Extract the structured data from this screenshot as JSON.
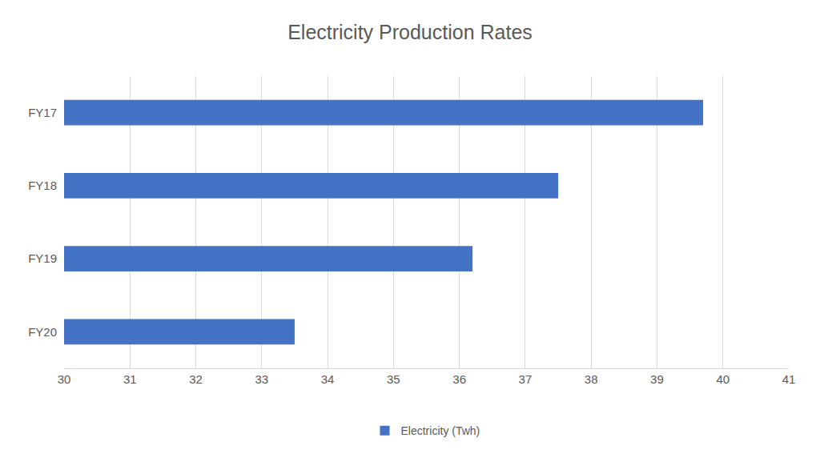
{
  "chart_data": {
    "type": "bar",
    "orientation": "horizontal",
    "title": "Electricity Production Rates",
    "categories": [
      "FY17",
      "FY18",
      "FY19",
      "FY20"
    ],
    "series": [
      {
        "name": "Electricity (Twh)",
        "color": "#4472c4",
        "values": [
          39.7,
          37.5,
          36.2,
          33.5
        ]
      }
    ],
    "xlim": [
      30,
      41
    ],
    "xticks": [
      30,
      31,
      32,
      33,
      34,
      35,
      36,
      37,
      38,
      39,
      40,
      41
    ],
    "grid": true,
    "legend": "bottom"
  }
}
